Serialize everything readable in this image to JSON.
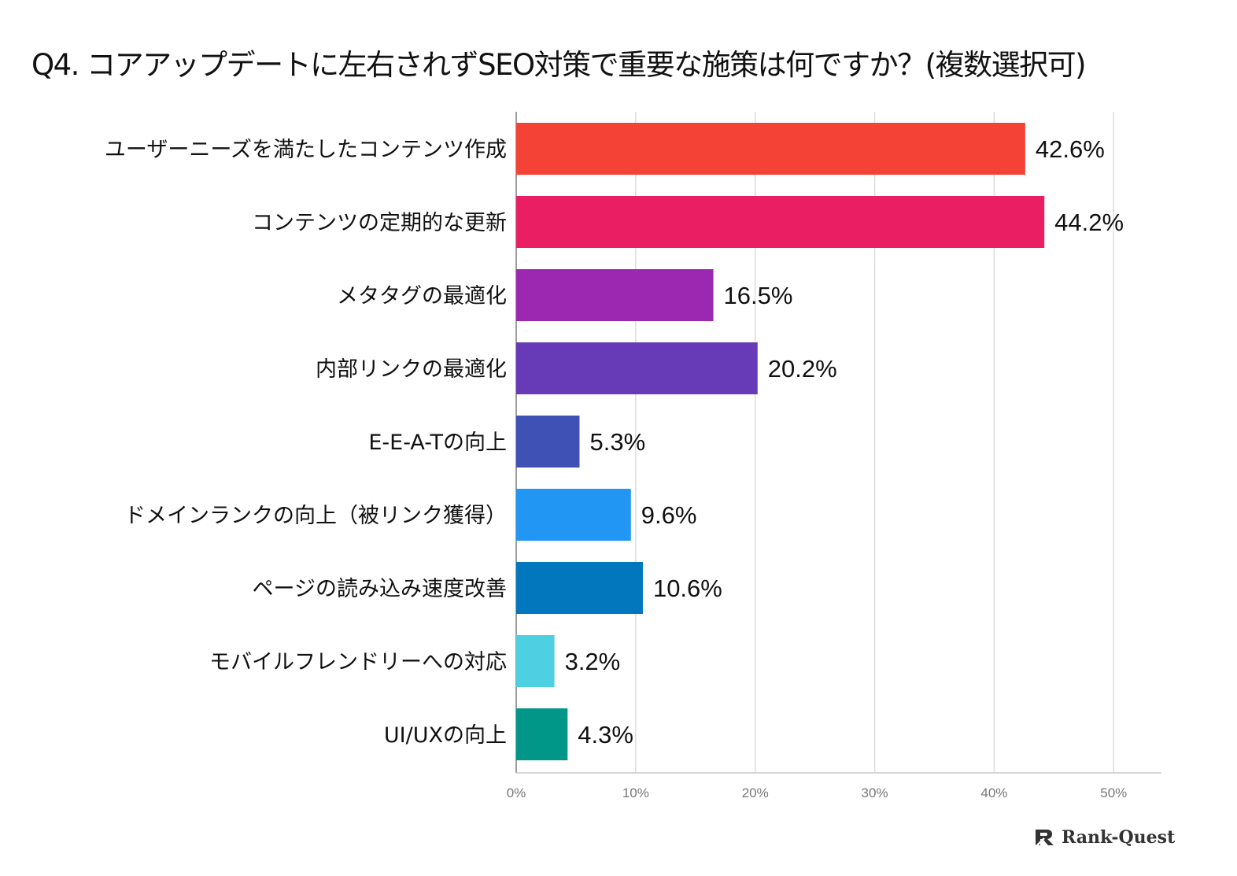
{
  "chart_data": {
    "type": "bar",
    "orientation": "horizontal",
    "title": "Q4. コアアップデートに左右されずSEO対策で重要な施策は何ですか？(複数選択可)",
    "categories": [
      "ユーザーニーズを満たしたコンテンツ作成",
      "コンテンツの定期的な更新",
      "メタタグの最適化",
      "内部リンクの最適化",
      "E-E-A-Tの向上",
      "ドメインランクの向上（被リンク獲得）",
      "ページの読み込み速度改善",
      "モバイルフレンドリーへの対応",
      "UI/UXの向上"
    ],
    "values": [
      42.6,
      44.2,
      16.5,
      20.2,
      5.3,
      9.6,
      10.6,
      3.2,
      4.3
    ],
    "value_labels": [
      "42.6%",
      "44.2%",
      "16.5%",
      "20.2%",
      "5.3%",
      "9.6%",
      "10.6%",
      "3.2%",
      "4.3%"
    ],
    "colors": [
      "#F44336",
      "#E91E63",
      "#9C27B0",
      "#673AB7",
      "#3F51B5",
      "#2196F3",
      "#0277BD",
      "#4DD0E1",
      "#009688"
    ],
    "xlim": [
      0,
      54
    ],
    "xticks": [
      0,
      10,
      20,
      30,
      40,
      50
    ],
    "xtick_labels": [
      "0%",
      "10%",
      "20%",
      "30%",
      "40%",
      "50%"
    ],
    "grid": true,
    "xlabel": "",
    "ylabel": ""
  },
  "brand": {
    "name": "Rank-Quest",
    "icon": "rank-quest-logo-icon"
  }
}
